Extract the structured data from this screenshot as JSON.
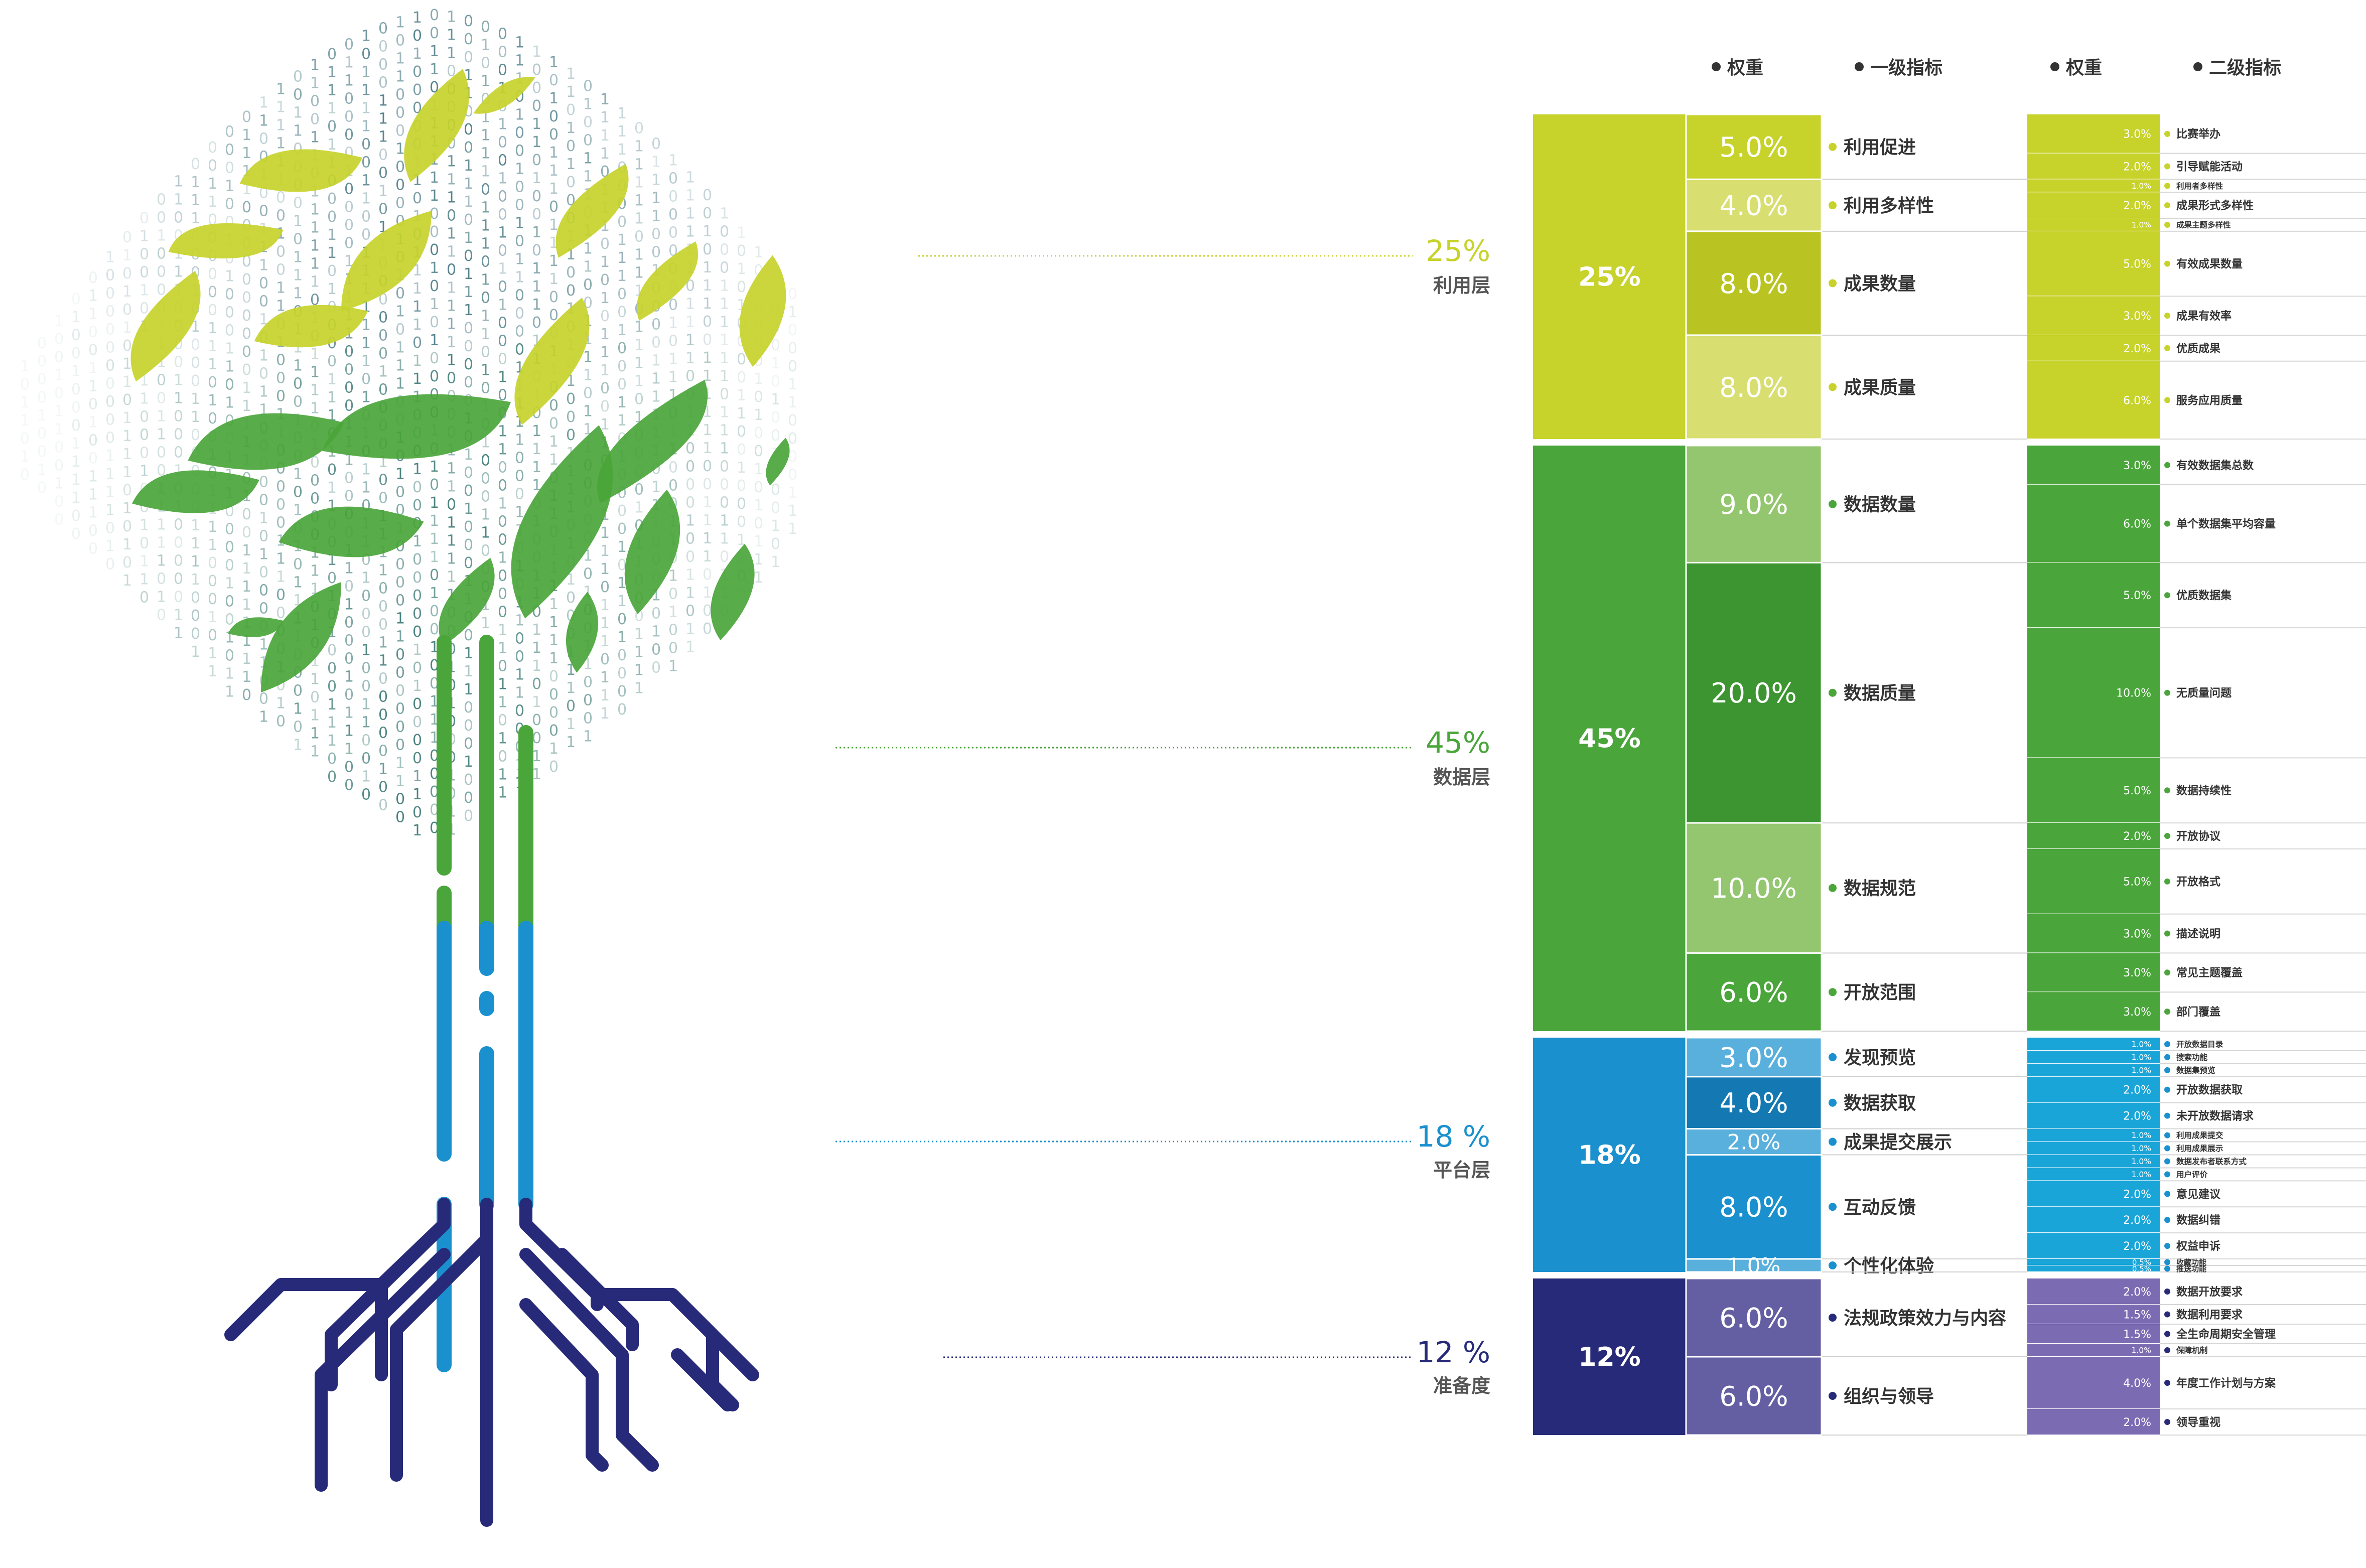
{
  "colors": {
    "usage": "#c7d22b",
    "usage_light": "#d8de70",
    "usage_dark": "#b9c422",
    "data": "#4aa53a",
    "data_light": "#93c66f",
    "data_dark": "#3c9530",
    "platform": "#1a90ce",
    "platform_light": "#5ab0dc",
    "platform_dark": "#1479b2",
    "platform_secondary": "#1aa5d8",
    "readiness": "#272a78",
    "readiness_light": "#645fa3",
    "readiness_secondary": "#7b6bb3",
    "text": "#333333"
  },
  "headers": {
    "weight1": "权重",
    "level1": "一级指标",
    "weight2": "权重",
    "level2": "二级指标"
  },
  "layers": [
    {
      "id": "usage",
      "weight": "25%",
      "name": "利用层",
      "label_pct": "25%",
      "level1": [
        {
          "weight": "5.0%",
          "name": "利用促进",
          "level2": [
            {
              "weight": "3.0%",
              "name": "比赛举办"
            },
            {
              "weight": "2.0%",
              "name": "引导赋能活动"
            }
          ]
        },
        {
          "weight": "4.0%",
          "name": "利用多样性",
          "level2": [
            {
              "weight": "1.0%",
              "name": "利用者多样性"
            },
            {
              "weight": "2.0%",
              "name": "成果形式多样性"
            },
            {
              "weight": "1.0%",
              "name": "成果主题多样性"
            }
          ]
        },
        {
          "weight": "8.0%",
          "name": "成果数量",
          "level2": [
            {
              "weight": "5.0%",
              "name": "有效成果数量"
            },
            {
              "weight": "3.0%",
              "name": "成果有效率"
            }
          ]
        },
        {
          "weight": "8.0%",
          "name": "成果质量",
          "level2": [
            {
              "weight": "2.0%",
              "name": "优质成果"
            },
            {
              "weight": "6.0%",
              "name": "服务应用质量"
            }
          ]
        }
      ]
    },
    {
      "id": "data",
      "weight": "45%",
      "name": "数据层",
      "label_pct": "45%",
      "level1": [
        {
          "weight": "9.0%",
          "name": "数据数量",
          "level2": [
            {
              "weight": "3.0%",
              "name": "有效数据集总数"
            },
            {
              "weight": "6.0%",
              "name": "单个数据集平均容量"
            }
          ]
        },
        {
          "weight": "20.0%",
          "name": "数据质量",
          "level2": [
            {
              "weight": "5.0%",
              "name": "优质数据集"
            },
            {
              "weight": "10.0%",
              "name": "无质量问题"
            },
            {
              "weight": "5.0%",
              "name": "数据持续性"
            }
          ]
        },
        {
          "weight": "10.0%",
          "name": "数据规范",
          "level2": [
            {
              "weight": "2.0%",
              "name": "开放协议"
            },
            {
              "weight": "5.0%",
              "name": "开放格式"
            },
            {
              "weight": "3.0%",
              "name": "描述说明"
            }
          ]
        },
        {
          "weight": "6.0%",
          "name": "开放范围",
          "level2": [
            {
              "weight": "3.0%",
              "name": "常见主题覆盖"
            },
            {
              "weight": "3.0%",
              "name": "部门覆盖"
            }
          ]
        }
      ]
    },
    {
      "id": "platform",
      "weight": "18%",
      "name": "平台层",
      "label_pct": "18 %",
      "level1": [
        {
          "weight": "3.0%",
          "name": "发现预览",
          "level2": [
            {
              "weight": "1.0%",
              "name": "开放数据目录"
            },
            {
              "weight": "1.0%",
              "name": "搜索功能"
            },
            {
              "weight": "1.0%",
              "name": "数据集预览"
            }
          ]
        },
        {
          "weight": "4.0%",
          "name": "数据获取",
          "level2": [
            {
              "weight": "2.0%",
              "name": "开放数据获取"
            },
            {
              "weight": "2.0%",
              "name": "未开放数据请求"
            }
          ]
        },
        {
          "weight": "2.0%",
          "name": "成果提交展示",
          "level2": [
            {
              "weight": "1.0%",
              "name": "利用成果提交"
            },
            {
              "weight": "1.0%",
              "name": "利用成果展示"
            }
          ]
        },
        {
          "weight": "8.0%",
          "name": "互动反馈",
          "level2": [
            {
              "weight": "1.0%",
              "name": "数据发布者联系方式"
            },
            {
              "weight": "1.0%",
              "name": "用户评价"
            },
            {
              "weight": "2.0%",
              "name": "意见建议"
            },
            {
              "weight": "2.0%",
              "name": "数据纠错"
            },
            {
              "weight": "2.0%",
              "name": "权益申诉"
            }
          ]
        },
        {
          "weight": "1.0%",
          "name": "个性化体验",
          "level2": [
            {
              "weight": "0.5%",
              "name": "收藏功能"
            },
            {
              "weight": "0.5%",
              "name": "推送功能"
            }
          ]
        }
      ]
    },
    {
      "id": "readiness",
      "weight": "12%",
      "name": "准备度",
      "label_pct": "12 %",
      "level1": [
        {
          "weight": "6.0%",
          "name": "法规政策效力与内容",
          "level2": [
            {
              "weight": "2.0%",
              "name": "数据开放要求"
            },
            {
              "weight": "1.5%",
              "name": "数据利用要求"
            },
            {
              "weight": "1.5%",
              "name": "全生命周期安全管理"
            },
            {
              "weight": "1.0%",
              "name": "保障机制"
            }
          ]
        },
        {
          "weight": "6.0%",
          "name": "组织与领导",
          "level2": [
            {
              "weight": "4.0%",
              "name": "年度工作计划与方案"
            },
            {
              "weight": "2.0%",
              "name": "领导重视"
            }
          ]
        }
      ]
    }
  ]
}
